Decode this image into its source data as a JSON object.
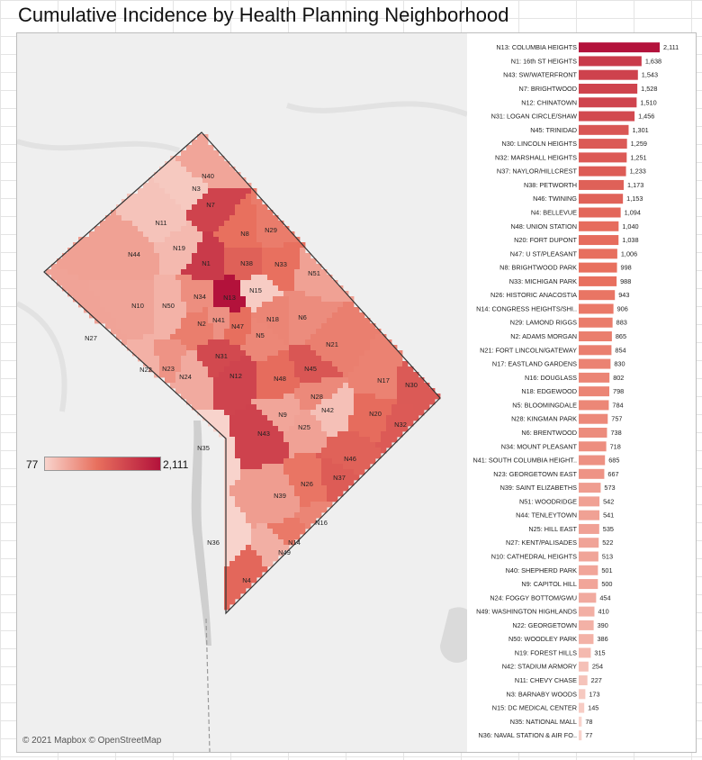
{
  "title": "Cumulative Incidence by Health Planning Neighborhood",
  "attribution": "© 2021 Mapbox © OpenStreetMap",
  "legend": {
    "min_label": "77",
    "max_label": "2,111"
  },
  "colors": {
    "low": "#f8d3cc",
    "mid": "#e8705e",
    "high": "#b3123b"
  },
  "chart_data": {
    "type": "bar",
    "orientation": "horizontal",
    "categories": [
      "N13: COLUMBIA HEIGHTS",
      "N1: 16th ST HEIGHTS",
      "N43: SW/WATERFRONT",
      "N7: BRIGHTWOOD",
      "N12: CHINATOWN",
      "N31: LOGAN CIRCLE/SHAW",
      "N45: TRINIDAD",
      "N30: LINCOLN HEIGHTS",
      "N32: MARSHALL HEIGHTS",
      "N37: NAYLOR/HILLCREST",
      "N38: PETWORTH",
      "N46: TWINING",
      "N4: BELLEVUE",
      "N48: UNION STATION",
      "N20: FORT DUPONT",
      "N47: U ST/PLEASANT",
      "N8: BRIGHTWOOD PARK",
      "N33: MICHIGAN PARK",
      "N26: HISTORIC ANACOSTIA",
      "N14: CONGRESS HEIGHTS/SHI..",
      "N29: LAMOND RIGGS",
      "N2: ADAMS MORGAN",
      "N21: FORT LINCOLN/GATEWAY",
      "N17: EASTLAND GARDENS",
      "N16: DOUGLASS",
      "N18: EDGEWOOD",
      "N5: BLOOMINGDALE",
      "N28: KINGMAN PARK",
      "N6: BRENTWOOD",
      "N34: MOUNT PLEASANT",
      "N41: SOUTH COLUMBIA HEIGHT..",
      "N23: GEORGETOWN EAST",
      "N39: SAINT ELIZABETHS",
      "N51: WOODRIDGE",
      "N44: TENLEYTOWN",
      "N25: HILL EAST",
      "N27: KENT/PALISADES",
      "N10: CATHEDRAL HEIGHTS",
      "N40: SHEPHERD PARK",
      "N9: CAPITOL HILL",
      "N24: FOGGY BOTTOM/GWU",
      "N49: WASHINGTON HIGHLANDS",
      "N22: GEORGETOWN",
      "N50: WOODLEY PARK",
      "N19: FOREST HILLS",
      "N42: STADIUM ARMORY",
      "N11: CHEVY CHASE",
      "N3: BARNABY WOODS",
      "N15: DC MEDICAL CENTER",
      "N35: NATIONAL MALL",
      "N36: NAVAL STATION & AIR FO.."
    ],
    "values": [
      2111,
      1638,
      1543,
      1528,
      1510,
      1456,
      1301,
      1259,
      1251,
      1233,
      1173,
      1153,
      1094,
      1040,
      1038,
      1006,
      998,
      988,
      943,
      906,
      883,
      865,
      854,
      830,
      802,
      798,
      784,
      757,
      738,
      718,
      685,
      667,
      573,
      542,
      541,
      535,
      522,
      513,
      501,
      500,
      454,
      410,
      390,
      386,
      315,
      254,
      227,
      173,
      145,
      78,
      77
    ],
    "value_labels": [
      "2,111",
      "1,638",
      "1,543",
      "1,528",
      "1,510",
      "1,456",
      "1,301",
      "1,259",
      "1,251",
      "1,233",
      "1,173",
      "1,153",
      "1,094",
      "1,040",
      "1,038",
      "1,006",
      "998",
      "988",
      "943",
      "906",
      "883",
      "865",
      "854",
      "830",
      "802",
      "798",
      "784",
      "757",
      "738",
      "718",
      "685",
      "667",
      "573",
      "542",
      "541",
      "535",
      "522",
      "513",
      "501",
      "500",
      "454",
      "410",
      "390",
      "386",
      "315",
      "254",
      "227",
      "173",
      "145",
      "78",
      "77"
    ],
    "xlim": [
      0,
      2111
    ],
    "grid": false,
    "legend_placement": "left-middle"
  },
  "map": {
    "labels": [
      "N40",
      "N3",
      "N7",
      "N11",
      "N19",
      "N8",
      "N29",
      "N44",
      "N1",
      "N38",
      "N33",
      "N51",
      "N10",
      "N50",
      "N34",
      "N13",
      "N15",
      "N2",
      "N41",
      "N47",
      "N5",
      "N6",
      "N27",
      "N21",
      "N31",
      "N12",
      "N45",
      "N22",
      "N23",
      "N24",
      "N48",
      "N18",
      "N30",
      "N28",
      "N9",
      "N20",
      "N25",
      "N42",
      "N43",
      "N32",
      "N35",
      "N46",
      "N26",
      "N37",
      "N39",
      "N16",
      "N14",
      "N49",
      "N36",
      "N4",
      "N17"
    ]
  }
}
